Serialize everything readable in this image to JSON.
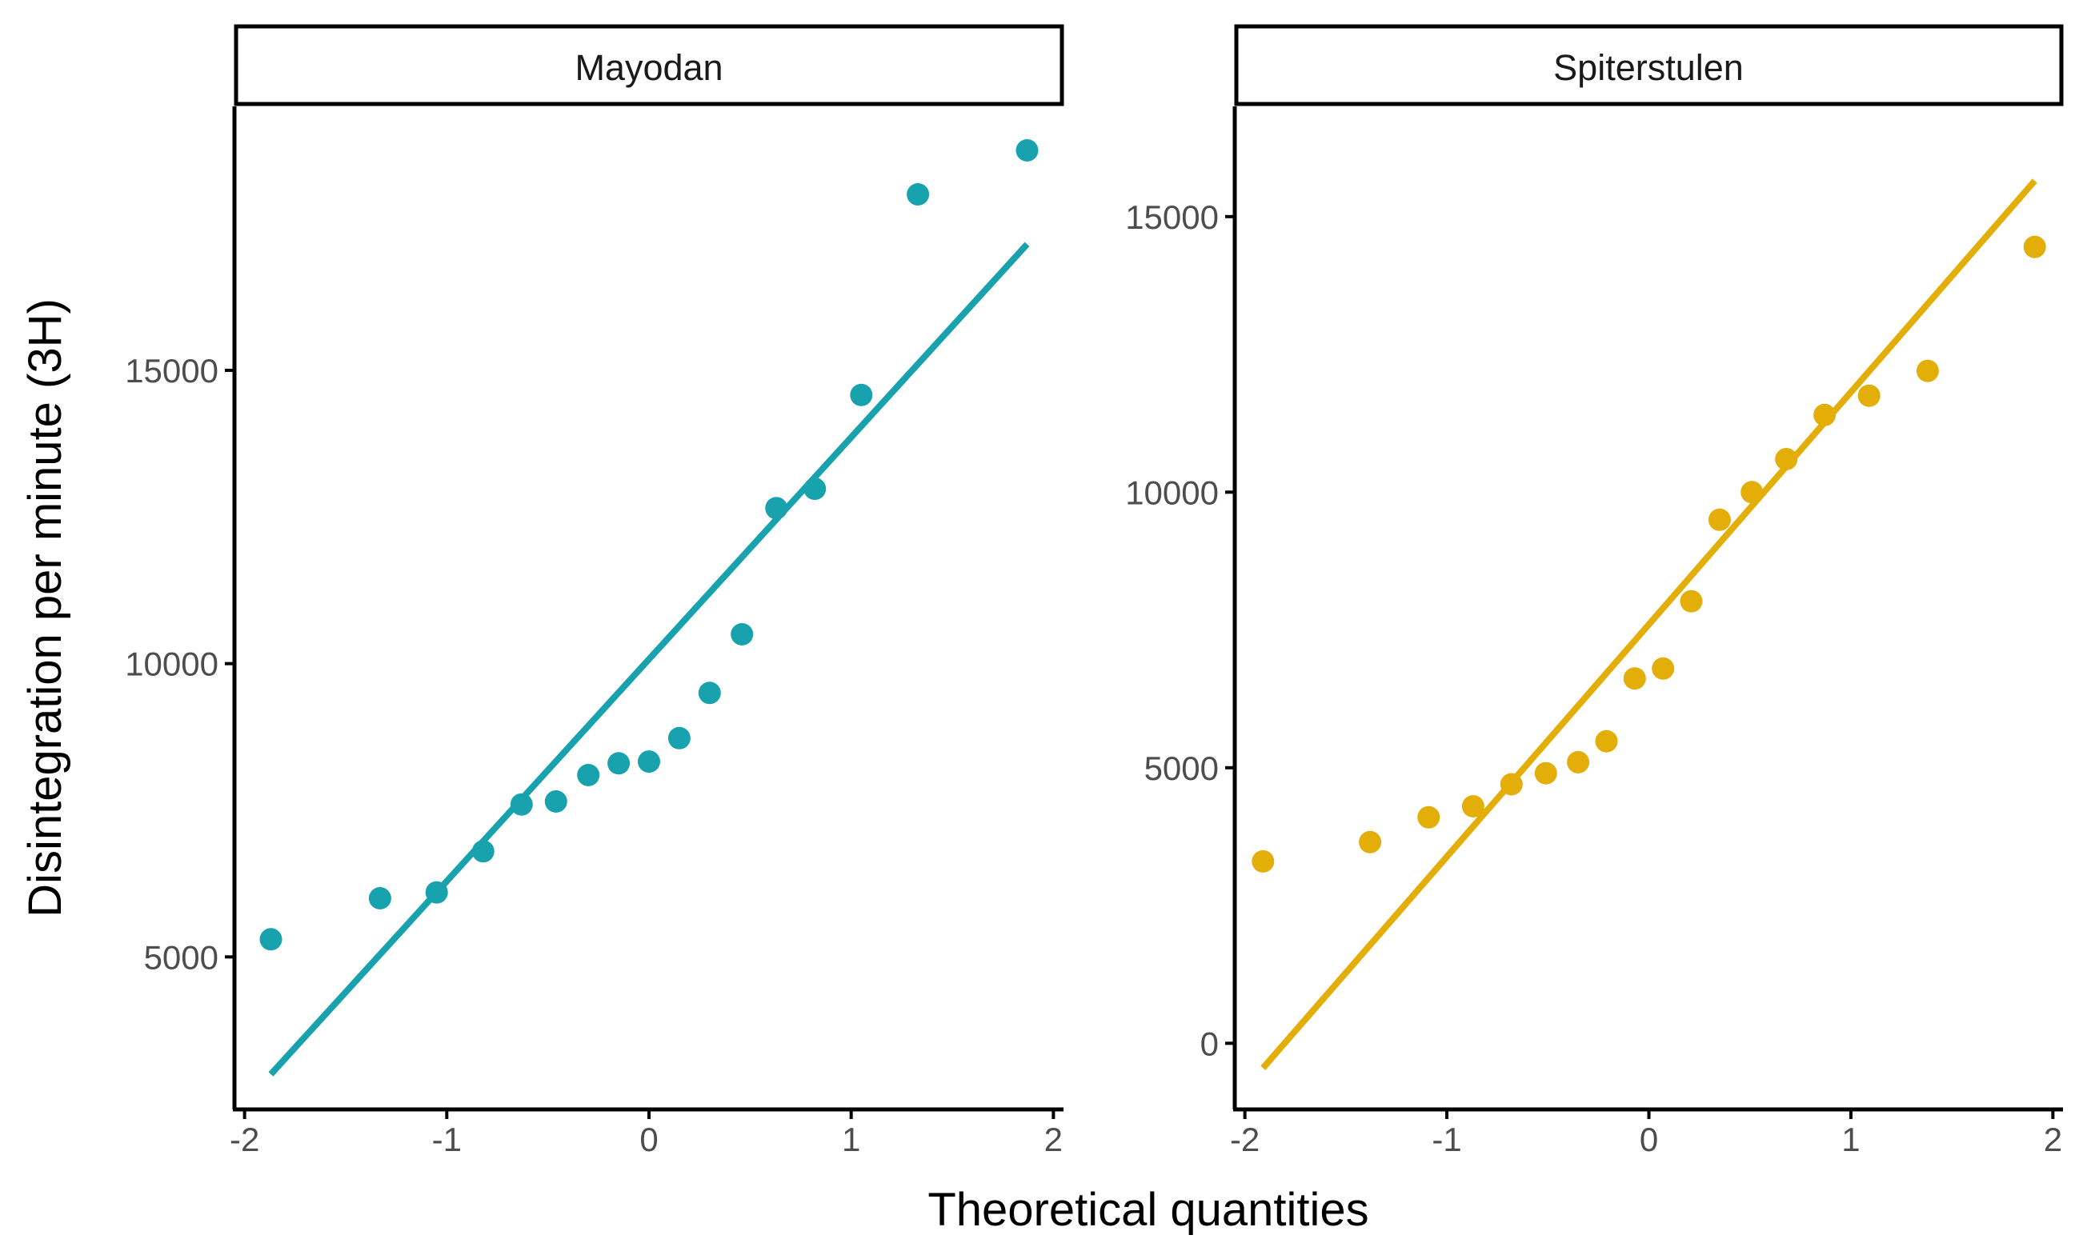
{
  "chart_data": {
    "type": "scatter",
    "xlabel": "Theoretical quantities",
    "ylabel": "Disintegration per minute (3H)",
    "grid": false,
    "legend": "none",
    "panels": [
      {
        "title": "Mayodan",
        "color": "#17A2AE",
        "xlim": [
          -2.05,
          2.05
        ],
        "ylim": [
          2400,
          19500
        ],
        "xticks": [
          -2,
          -1,
          0,
          1,
          2
        ],
        "xtick_labels": [
          "-2",
          "-1",
          "0",
          "1",
          "2"
        ],
        "yticks": [
          5000,
          10000,
          15000
        ],
        "ytick_labels": [
          "5000",
          "10000",
          "15000"
        ],
        "points": [
          {
            "x": -1.87,
            "y": 5300
          },
          {
            "x": -1.33,
            "y": 6000
          },
          {
            "x": -1.05,
            "y": 6100
          },
          {
            "x": -0.82,
            "y": 6800
          },
          {
            "x": -0.63,
            "y": 7600
          },
          {
            "x": -0.46,
            "y": 7650
          },
          {
            "x": -0.3,
            "y": 8100
          },
          {
            "x": -0.15,
            "y": 8300
          },
          {
            "x": 0.0,
            "y": 8330
          },
          {
            "x": 0.15,
            "y": 8730
          },
          {
            "x": 0.3,
            "y": 9500
          },
          {
            "x": 0.46,
            "y": 10500
          },
          {
            "x": 0.63,
            "y": 12650
          },
          {
            "x": 0.82,
            "y": 12980
          },
          {
            "x": 1.05,
            "y": 14580
          },
          {
            "x": 1.33,
            "y": 18000
          },
          {
            "x": 1.87,
            "y": 18750
          }
        ],
        "line": {
          "x": [
            -1.87,
            1.87
          ],
          "y": [
            3000,
            17150
          ]
        }
      },
      {
        "title": "Spiterstulen",
        "color": "#E3AE08",
        "xlim": [
          -2.05,
          2.05
        ],
        "ylim": [
          -1200,
          17000
        ],
        "xticks": [
          -2,
          -1,
          0,
          1,
          2
        ],
        "xtick_labels": [
          "-2",
          "-1",
          "0",
          "1",
          "2"
        ],
        "yticks": [
          0,
          5000,
          10000,
          15000
        ],
        "ytick_labels": [
          "0",
          "5000",
          "10000",
          "15000"
        ],
        "points": [
          {
            "x": -1.91,
            "y": 3300
          },
          {
            "x": -1.38,
            "y": 3650
          },
          {
            "x": -1.09,
            "y": 4100
          },
          {
            "x": -0.87,
            "y": 4300
          },
          {
            "x": -0.68,
            "y": 4700
          },
          {
            "x": -0.51,
            "y": 4900
          },
          {
            "x": -0.35,
            "y": 5100
          },
          {
            "x": -0.21,
            "y": 5480
          },
          {
            "x": -0.07,
            "y": 6620
          },
          {
            "x": 0.07,
            "y": 6800
          },
          {
            "x": 0.21,
            "y": 8020
          },
          {
            "x": 0.35,
            "y": 9500
          },
          {
            "x": 0.51,
            "y": 10000
          },
          {
            "x": 0.68,
            "y": 10600
          },
          {
            "x": 0.87,
            "y": 11400
          },
          {
            "x": 1.09,
            "y": 11750
          },
          {
            "x": 1.38,
            "y": 12200
          },
          {
            "x": 1.91,
            "y": 14450
          }
        ],
        "line": {
          "x": [
            -1.91,
            1.91
          ],
          "y": [
            -450,
            15650
          ]
        }
      }
    ]
  }
}
